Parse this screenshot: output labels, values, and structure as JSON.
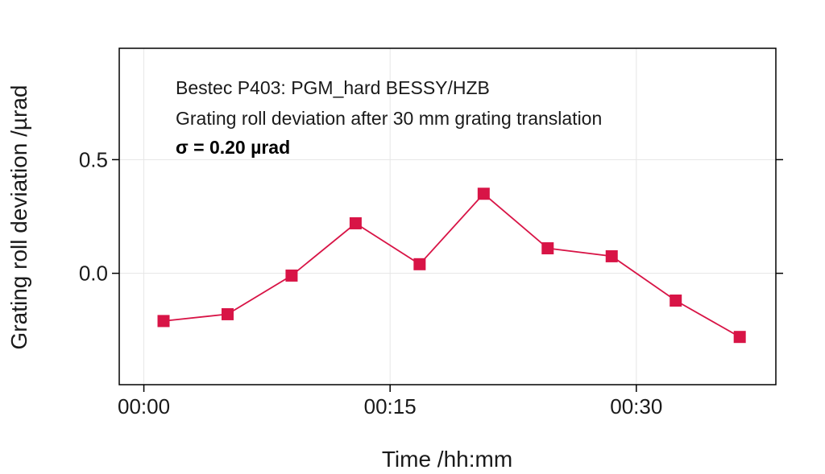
{
  "chart_data": {
    "type": "line",
    "title": "",
    "xlabel": "Time /hh:mm",
    "ylabel": "Grating roll deviation /µrad",
    "annotations": [
      "Bestec P403: PGM_hard BESSY/HZB",
      "Grating roll deviation after 30 mm grating translation",
      "σ = 0.20 µrad"
    ],
    "x_unit": "minutes",
    "x_ticks": [
      {
        "value": 0,
        "label": "00:00"
      },
      {
        "value": 15,
        "label": "00:15"
      },
      {
        "value": 30,
        "label": "00:30"
      }
    ],
    "y_ticks": [
      {
        "value": 0.0,
        "label": "0.0"
      },
      {
        "value": 0.5,
        "label": "0.5"
      }
    ],
    "xlim": [
      -1.5,
      38.5
    ],
    "ylim": [
      -0.49,
      0.99
    ],
    "grid": true,
    "series": [
      {
        "color": "#d81446",
        "marker": "square",
        "x": [
          1.2,
          5.1,
          9.0,
          12.9,
          16.8,
          20.7,
          24.6,
          28.5,
          32.4,
          36.3
        ],
        "y": [
          -0.21,
          -0.18,
          -0.01,
          0.22,
          0.04,
          0.35,
          0.11,
          0.075,
          -0.12,
          -0.28
        ]
      }
    ]
  }
}
